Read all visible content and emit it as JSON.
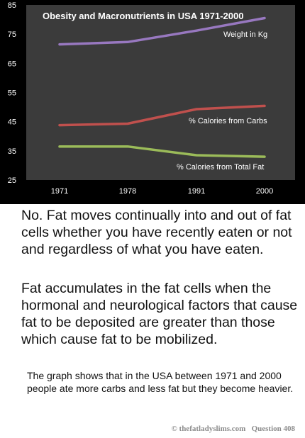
{
  "chart_data": {
    "type": "line",
    "title": "Obesity and Macronutrients  in USA 1971-2000",
    "categories": [
      "1971",
      "1978",
      "1991",
      "2000"
    ],
    "y_ticks": [
      "25",
      "35",
      "45",
      "55",
      "65",
      "75",
      "85"
    ],
    "ylim": [
      25,
      85
    ],
    "grid": false,
    "series": [
      {
        "name": "Weight in Kg",
        "values": [
          71.5,
          72.3,
          76.2,
          80.5
        ],
        "color": "#9878c0"
      },
      {
        "name": "% Calories from Carbs",
        "values": [
          43.8,
          44.3,
          49.3,
          50.4
        ],
        "color": "#c0504d"
      },
      {
        "name": "% Calories from  Total Fat",
        "values": [
          36.5,
          36.5,
          33.5,
          33.0
        ],
        "color": "#9bbb59"
      }
    ]
  },
  "text": {
    "paragraph_1": "No. Fat moves continually into and out of fat cells whether you have recently eaten or not and regardless of what you have eaten.",
    "paragraph_2": "Fat accumulates in the fat cells when the hormonal and neurological factors that cause fat to be deposited are greater than those which cause fat to be mobilized.",
    "paragraph_3": "The graph shows that in the USA between 1971 and 2000 people ate more carbs and less fat but they become heavier.",
    "footer": "© thefatladyslims.com   Question 408"
  }
}
